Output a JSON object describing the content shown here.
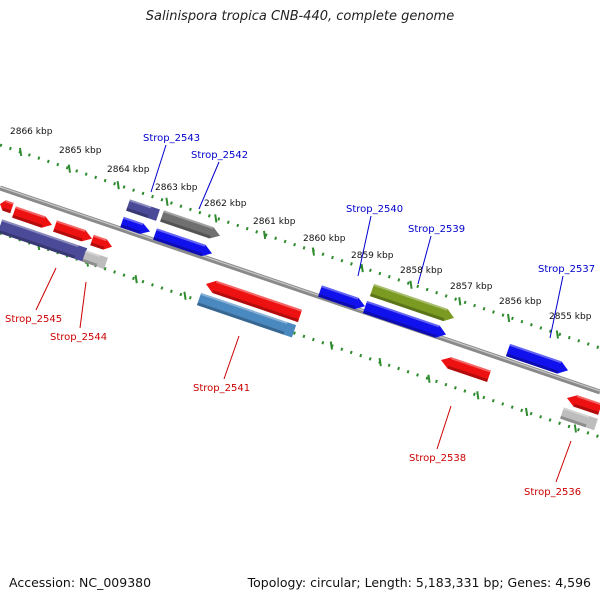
{
  "title": "Salinispora tropica CNB-440, complete genome",
  "footer": {
    "accession": "Accession: NC_009380",
    "summary": "Topology: circular; Length: 5,183,331 bp; Genes: 4,596"
  },
  "colors": {
    "backbone": "#7a7a7a",
    "ruler": "#2e8b2e",
    "forward_label": "#0000cc",
    "reverse_label": "#cc0000",
    "red": "#ee1111",
    "blue": "#1111ee",
    "navy": "#4a4a99",
    "gray": "#707070",
    "olive": "#7a9a22",
    "steel": "#4a88c0",
    "lightgray": "#bdbdbd"
  },
  "ruler_labels": [
    "2866 kbp",
    "2865 kbp",
    "2864 kbp",
    "2863 kbp",
    "2862 kbp",
    "2861 kbp",
    "2860 kbp",
    "2859 kbp",
    "2858 kbp",
    "2857 kbp",
    "2856 kbp",
    "2855 kbp"
  ],
  "genes": [
    {
      "label": "Strop_2543",
      "strand": "forward"
    },
    {
      "label": "Strop_2542",
      "strand": "forward"
    },
    {
      "label": "Strop_2540",
      "strand": "forward"
    },
    {
      "label": "Strop_2539",
      "strand": "forward"
    },
    {
      "label": "Strop_2537",
      "strand": "forward"
    },
    {
      "label": "Strop_2545",
      "strand": "reverse"
    },
    {
      "label": "Strop_2544",
      "strand": "reverse"
    },
    {
      "label": "Strop_2541",
      "strand": "reverse"
    },
    {
      "label": "Strop_2538",
      "strand": "reverse"
    },
    {
      "label": "Strop_2536",
      "strand": "reverse"
    }
  ]
}
